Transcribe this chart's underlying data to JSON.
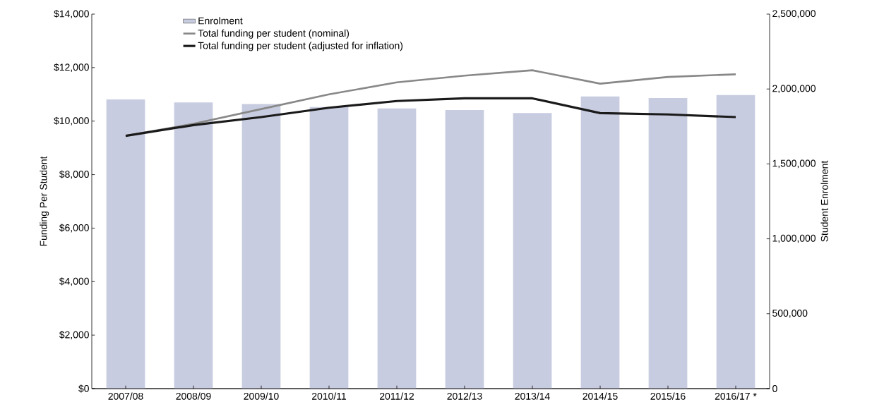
{
  "chart_data": {
    "type": "bar",
    "categories": [
      "2007/08",
      "2008/09",
      "2009/10",
      "2010/11",
      "2011/12",
      "2012/13",
      "2013/14",
      "2014/15",
      "2015/16",
      "2016/17 *"
    ],
    "series": [
      {
        "name": "Enrolment",
        "axis": "y2",
        "color": "#c8cce0",
        "values": [
          1930000,
          1910000,
          1900000,
          1880000,
          1870000,
          1860000,
          1840000,
          1950000,
          1940000,
          1960000
        ]
      },
      {
        "name": "Total funding per student (nominal)",
        "type": "line",
        "color": "#888888",
        "values": [
          9450,
          9900,
          10450,
          11000,
          11450,
          11700,
          11900,
          11400,
          11650,
          11750
        ]
      },
      {
        "name": "Total funding per student (adjusted for inflation)",
        "type": "line",
        "color": "#1a1a1a",
        "values": [
          9450,
          9850,
          10150,
          10500,
          10750,
          10850,
          10850,
          10300,
          10250,
          10150
        ]
      }
    ],
    "ylabel": "Funding Per Student",
    "y2label": "Student Enrolment",
    "ylim": [
      0,
      14000
    ],
    "yticks": [
      {
        "value": 0,
        "label": "$0"
      },
      {
        "value": 2000,
        "label": "$2,000"
      },
      {
        "value": 4000,
        "label": "$4,000"
      },
      {
        "value": 6000,
        "label": "$6,000"
      },
      {
        "value": 8000,
        "label": "$8,000"
      },
      {
        "value": 10000,
        "label": "$10,000"
      },
      {
        "value": 12000,
        "label": "$12,000"
      },
      {
        "value": 14000,
        "label": "$14,000"
      }
    ],
    "y2lim": [
      0,
      2500000
    ],
    "y2ticks": [
      0,
      {
        "value": 500000,
        "label": "500,000"
      },
      {
        "value": 1000000,
        "label": "1,000,000"
      },
      {
        "value": 1500000,
        "label": "1,500,000"
      },
      {
        "value": 2000000,
        "label": "2,000,000"
      },
      {
        "value": 2500000,
        "label": "2,500,000"
      }
    ],
    "legend": "top left",
    "line_style": "solid"
  }
}
